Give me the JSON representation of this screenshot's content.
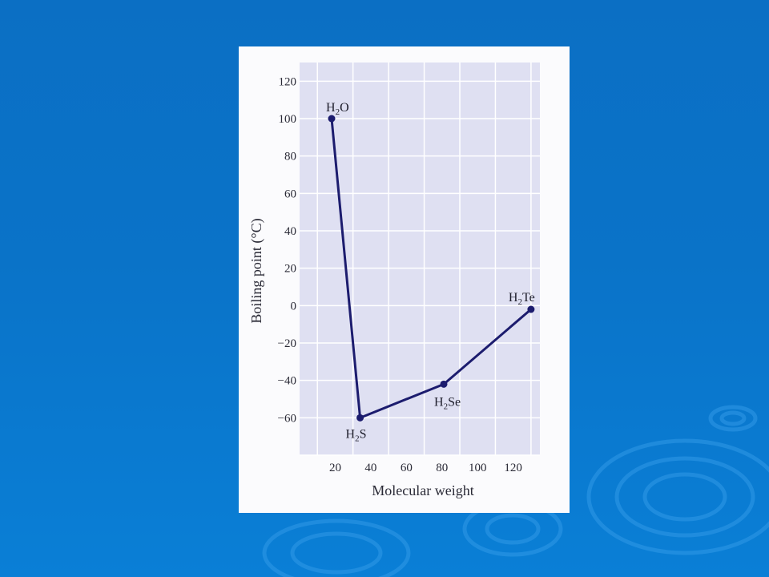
{
  "colors": {
    "slide_background": "#0a73c8",
    "plot_background": "#dfe0f2",
    "grid": "#ffffff",
    "series": "#1c1c6e"
  },
  "chart_data": {
    "type": "line",
    "xlabel": "Molecular weight",
    "ylabel": "Boiling point (°C)",
    "xlim": [
      0,
      135
    ],
    "ylim": [
      -80,
      130
    ],
    "x_ticks": [
      20,
      40,
      60,
      80,
      100,
      120
    ],
    "y_ticks": [
      120,
      100,
      80,
      60,
      40,
      20,
      0,
      -20,
      -40,
      -60
    ],
    "grid": true,
    "series": [
      {
        "points": [
          {
            "label": "H2O",
            "x": 18,
            "y": 100
          },
          {
            "label": "H2S",
            "x": 34,
            "y": -60
          },
          {
            "label": "H2Se",
            "x": 81,
            "y": -42
          },
          {
            "label": "H2Te",
            "x": 130,
            "y": -2
          }
        ]
      }
    ]
  }
}
